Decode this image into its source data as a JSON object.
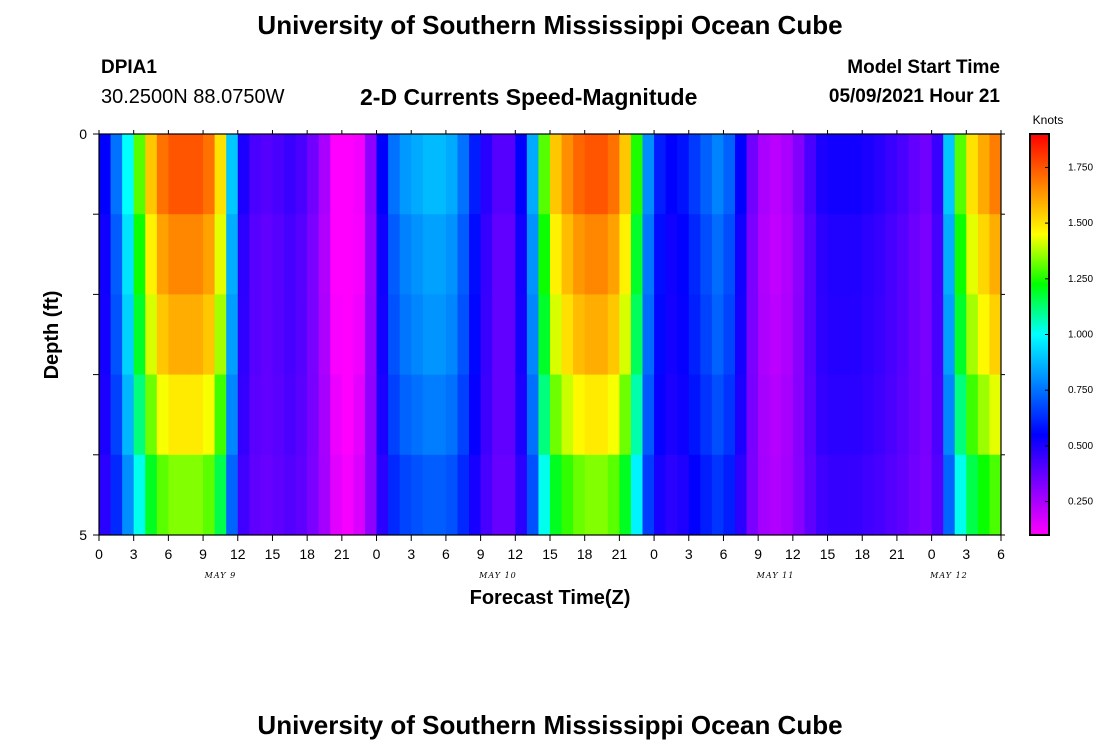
{
  "header": {
    "title": "University of Southern Mississippi Ocean Cube",
    "station_id": "DPIA1",
    "coordinates": "30.2500N  88.0750W",
    "plot_title": "2-D Currents Speed-Magnitude",
    "model_start_label": "Model Start Time",
    "model_start_value": "05/09/2021 Hour 21"
  },
  "footer": {
    "title": "University of Southern Mississippi Ocean Cube"
  },
  "colors": {
    "colormap": [
      "#ff00ff",
      "#8000ff",
      "#0000ff",
      "#0080ff",
      "#00ffff",
      "#00ff00",
      "#ffff00",
      "#ff8000",
      "#ff0000"
    ]
  },
  "chart_data": {
    "type": "heatmap",
    "title": "2-D Currents Speed-Magnitude",
    "xlabel": "Forecast Time(Z)",
    "ylabel": "Depth (ft)",
    "ylim": [
      0,
      5
    ],
    "y_tick_labels": [
      "0",
      "5"
    ],
    "x_tick_labels": [
      "0",
      "3",
      "6",
      "9",
      "12",
      "15",
      "18",
      "21",
      "0",
      "3",
      "6",
      "9",
      "12",
      "15",
      "18",
      "21",
      "0",
      "3",
      "6",
      "9",
      "12",
      "15",
      "18",
      "21",
      "0",
      "3",
      "6"
    ],
    "date_labels": [
      "MAY 9",
      "MAY 10",
      "MAY 11",
      "MAY 12"
    ],
    "colorbar": {
      "unit": "Knots",
      "min": 0.1,
      "max": 1.9,
      "tick_values": [
        0.25,
        0.5,
        0.75,
        1.0,
        1.25,
        1.5,
        1.75
      ],
      "tick_labels": [
        "0.250",
        "0.500",
        "0.750",
        "1.000",
        "1.250",
        "1.500",
        "1.750"
      ]
    },
    "time_step_hours": 1,
    "time_hours_start": 0,
    "depth_levels": [
      0.5,
      1.5,
      2.5,
      3.5,
      4.5
    ],
    "speed_profile_surface": [
      [
        0,
        0.55
      ],
      [
        1,
        0.75
      ],
      [
        2,
        1.0
      ],
      [
        3,
        1.3
      ],
      [
        4,
        1.55
      ],
      [
        5,
        1.7
      ],
      [
        6,
        1.75
      ],
      [
        7,
        1.75
      ],
      [
        8,
        1.75
      ],
      [
        9,
        1.7
      ],
      [
        10,
        1.5
      ],
      [
        11,
        0.9
      ],
      [
        12,
        0.5
      ],
      [
        13,
        0.42
      ],
      [
        14,
        0.4
      ],
      [
        15,
        0.42
      ],
      [
        16,
        0.45
      ],
      [
        17,
        0.42
      ],
      [
        18,
        0.35
      ],
      [
        19,
        0.25
      ],
      [
        20,
        0.1
      ],
      [
        21,
        0.05
      ],
      [
        22,
        0.12
      ],
      [
        23,
        0.3
      ],
      [
        24,
        0.55
      ],
      [
        25,
        0.75
      ],
      [
        26,
        0.82
      ],
      [
        27,
        0.85
      ],
      [
        28,
        0.88
      ],
      [
        29,
        0.88
      ],
      [
        30,
        0.85
      ],
      [
        31,
        0.75
      ],
      [
        32,
        0.6
      ],
      [
        33,
        0.48
      ],
      [
        34,
        0.4
      ],
      [
        35,
        0.4
      ],
      [
        36,
        0.55
      ],
      [
        37,
        0.85
      ],
      [
        38,
        1.3
      ],
      [
        39,
        1.55
      ],
      [
        40,
        1.65
      ],
      [
        41,
        1.72
      ],
      [
        42,
        1.75
      ],
      [
        43,
        1.75
      ],
      [
        44,
        1.7
      ],
      [
        45,
        1.55
      ],
      [
        46,
        1.25
      ],
      [
        47,
        0.8
      ],
      [
        48,
        0.6
      ],
      [
        49,
        0.55
      ],
      [
        50,
        0.58
      ],
      [
        51,
        0.65
      ],
      [
        52,
        0.72
      ],
      [
        53,
        0.78
      ],
      [
        54,
        0.72
      ],
      [
        55,
        0.55
      ],
      [
        56,
        0.35
      ],
      [
        57,
        0.25
      ],
      [
        58,
        0.22
      ],
      [
        59,
        0.25
      ],
      [
        60,
        0.32
      ],
      [
        61,
        0.42
      ],
      [
        62,
        0.5
      ],
      [
        63,
        0.52
      ],
      [
        64,
        0.52
      ],
      [
        65,
        0.52
      ],
      [
        66,
        0.5
      ],
      [
        67,
        0.48
      ],
      [
        68,
        0.45
      ],
      [
        69,
        0.42
      ],
      [
        70,
        0.38
      ],
      [
        71,
        0.35
      ],
      [
        72,
        0.45
      ],
      [
        73,
        0.9
      ],
      [
        74,
        1.3
      ],
      [
        75,
        1.5
      ],
      [
        76,
        1.6
      ],
      [
        77,
        1.68
      ],
      [
        78,
        1.75
      ]
    ],
    "depth_factors": [
      1.0,
      0.95,
      0.9,
      0.82,
      0.72
    ],
    "depth_offsets": [
      0.0,
      0.0,
      0.02,
      0.05,
      0.08
    ]
  }
}
